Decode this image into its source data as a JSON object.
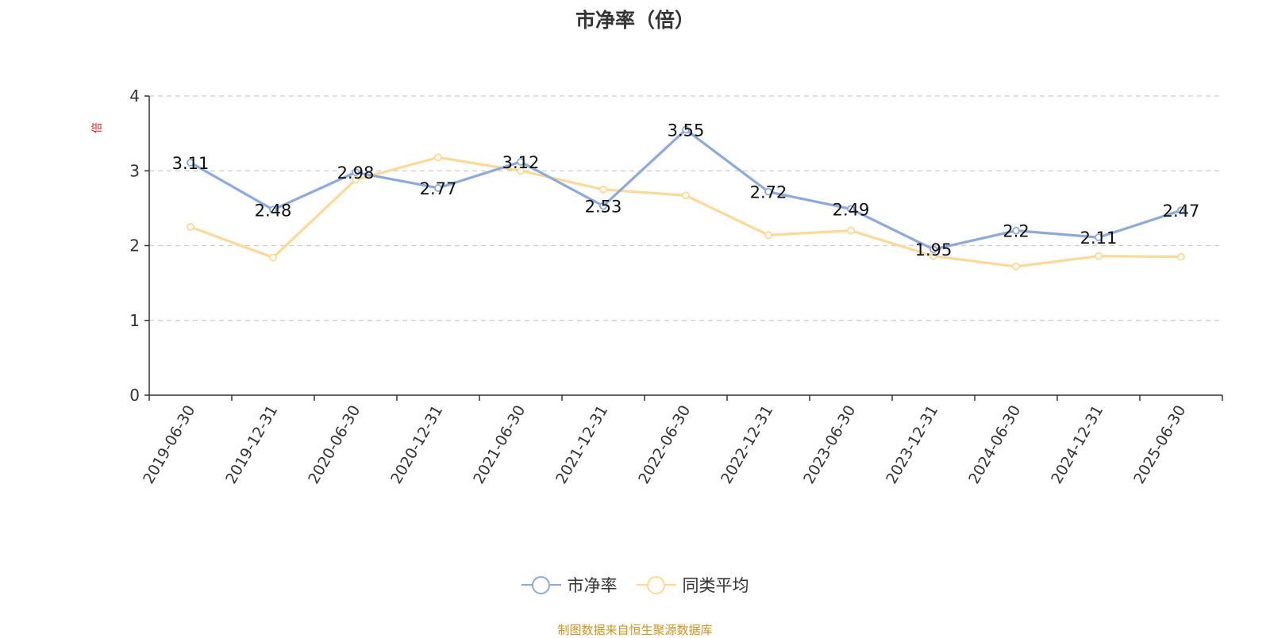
{
  "chart_data": {
    "type": "line",
    "title": "市净率（倍）",
    "ylabel": "倍",
    "ylim": [
      0,
      4
    ],
    "yticks": [
      "0",
      "1",
      "2",
      "3",
      "4"
    ],
    "categories": [
      "2019-06-30",
      "2019-12-31",
      "2020-06-30",
      "2020-12-31",
      "2021-06-30",
      "2021-12-31",
      "2022-06-30",
      "2022-12-31",
      "2023-06-30",
      "2023-12-31",
      "2024-06-30",
      "2024-12-31",
      "2025-06-30"
    ],
    "grid": "horizontal dashed",
    "legend_position": "bottom-center",
    "series": [
      {
        "name": "市净率",
        "color": "#8eaadb",
        "values": [
          3.11,
          2.48,
          2.98,
          2.77,
          3.12,
          2.53,
          3.55,
          2.72,
          2.49,
          1.95,
          2.2,
          2.11,
          2.47
        ],
        "labels": [
          "3.11",
          "2.48",
          "2.98",
          "2.77",
          "3.12",
          "2.53",
          "3.55",
          "2.72",
          "2.49",
          "1.95",
          "2.2",
          "2.11",
          "2.47"
        ]
      },
      {
        "name": "同类平均",
        "color": "#fcd994",
        "values": [
          2.25,
          1.84,
          2.88,
          3.18,
          3.0,
          2.75,
          2.67,
          2.14,
          2.2,
          1.86,
          1.72,
          1.86,
          1.85
        ]
      }
    ]
  },
  "source_note": "制图数据来自恒生聚源数据库"
}
